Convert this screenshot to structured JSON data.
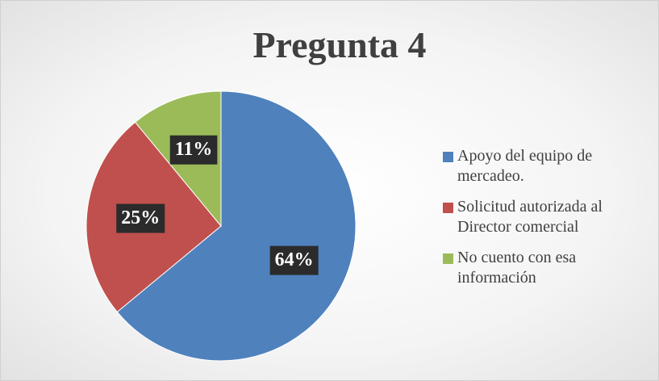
{
  "chart_data": {
    "type": "pie",
    "title": "Pregunta 4",
    "categories": [
      "Apoyo del equipo de mercadeo.",
      "Solicitud autorizada al Director comercial",
      "No cuento con esa información"
    ],
    "values": [
      64,
      25,
      11
    ],
    "value_labels": [
      "64%",
      "25%",
      "11%"
    ],
    "colors": [
      "#4f81bd",
      "#c0504d",
      "#9bbb59"
    ],
    "legend": "right"
  }
}
